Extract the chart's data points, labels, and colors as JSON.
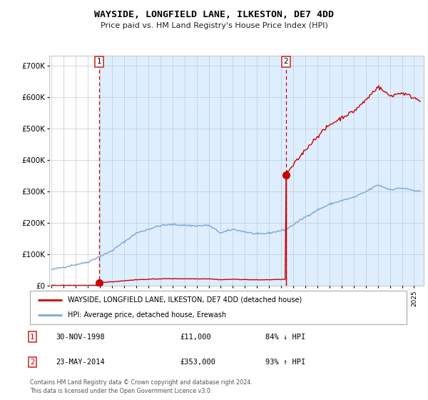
{
  "title": "WAYSIDE, LONGFIELD LANE, ILKESTON, DE7 4DD",
  "subtitle": "Price paid vs. HM Land Registry's House Price Index (HPI)",
  "sale1_date": "30-NOV-1998",
  "sale1_price": 11000,
  "sale1_label": "84% ↓ HPI",
  "sale1_year": 1998.917,
  "sale2_date": "23-MAY-2014",
  "sale2_price": 353000,
  "sale2_label": "93% ↑ HPI",
  "sale2_year": 2014.386,
  "legend_line1": "WAYSIDE, LONGFIELD LANE, ILKESTON, DE7 4DD (detached house)",
  "legend_line2": "HPI: Average price, detached house, Erewash",
  "footnote": "Contains HM Land Registry data © Crown copyright and database right 2024.\nThis data is licensed under the Open Government Licence v3.0.",
  "hpi_color": "#7ba7d4",
  "price_color": "#cc0000",
  "background_color": "#ffffff",
  "shaded_color": "#ddeeff",
  "grid_color": "#c8c8c8",
  "ylim": [
    0,
    730000
  ],
  "xlim_start": 1994.8,
  "xlim_end": 2025.8
}
